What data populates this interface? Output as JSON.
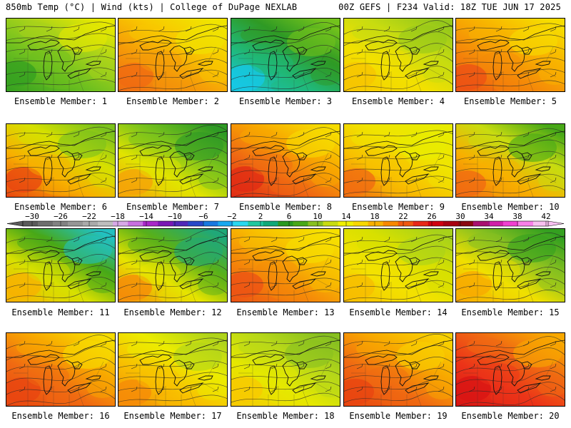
{
  "header": {
    "left": "850mb Temp (°C) | Wind (kts) | College of DuPage NEXLAB",
    "right": "00Z GEFS | F234 Valid: 18Z TUE JUN 17 2025"
  },
  "colorbar": {
    "labels": [
      "−30",
      "−26",
      "−22",
      "−18",
      "−14",
      "−10",
      "−6",
      "−2",
      "2",
      "6",
      "10",
      "14",
      "18",
      "22",
      "26",
      "30",
      "34",
      "38",
      "42"
    ],
    "values": [
      -30,
      -26,
      -22,
      -18,
      -14,
      -10,
      -6,
      -2,
      2,
      6,
      10,
      14,
      18,
      22,
      26,
      30,
      34,
      38,
      42
    ],
    "colors": [
      "#5a5a5a",
      "#6e6e6e",
      "#828282",
      "#969696",
      "#aaaaaa",
      "#bebebe",
      "#d8a8e8",
      "#c870e0",
      "#a828c8",
      "#7a18b4",
      "#5028b8",
      "#2848c8",
      "#1878e0",
      "#18a8f0",
      "#28d8f0",
      "#20c8a0",
      "#10a878",
      "#289820",
      "#48a818",
      "#88c020",
      "#c8dc10",
      "#f0f000",
      "#f8d800",
      "#f8b000",
      "#f88800",
      "#f05810",
      "#e82818",
      "#d00010",
      "#a80010",
      "#8a0810",
      "#a81070",
      "#d020a8",
      "#f040d0",
      "#f880e8",
      "#f8c0f0"
    ]
  },
  "members": [
    {
      "label": "Ensemble Member: 1",
      "palette": [
        "#34a020",
        "#6cbf1f",
        "#a8d21a",
        "#e6e800"
      ]
    },
    {
      "label": "Ensemble Member: 2",
      "palette": [
        "#f06a12",
        "#f59a08",
        "#f8c800",
        "#f0e400"
      ]
    },
    {
      "label": "Ensemble Member: 3",
      "palette": [
        "#16c8e8",
        "#20b878",
        "#2f9a24",
        "#72c21c"
      ]
    },
    {
      "label": "Ensemble Member: 4",
      "palette": [
        "#f7c400",
        "#f3e000",
        "#c8dc10",
        "#96c81a"
      ]
    },
    {
      "label": "Ensemble Member: 5",
      "palette": [
        "#ec5214",
        "#f58a08",
        "#f8b400",
        "#f6dc00"
      ]
    },
    {
      "label": "Ensemble Member: 6",
      "palette": [
        "#e84410",
        "#f8b000",
        "#d6e000",
        "#7cc21c"
      ]
    },
    {
      "label": "Ensemble Member: 7",
      "palette": [
        "#f5a208",
        "#e2e400",
        "#78c21c",
        "#2f9a24"
      ]
    },
    {
      "label": "Ensemble Member: 8",
      "palette": [
        "#e02a14",
        "#f06a12",
        "#f8a800",
        "#f6dc00"
      ]
    },
    {
      "label": "Ensemble Member: 9",
      "palette": [
        "#f06a12",
        "#f8c000",
        "#f0e400",
        "#e8ec00"
      ]
    },
    {
      "label": "Ensemble Member: 10",
      "palette": [
        "#f06a12",
        "#f8b000",
        "#c8dc10",
        "#48a818"
      ]
    },
    {
      "label": "Ensemble Member: 11",
      "palette": [
        "#f8b000",
        "#d8e000",
        "#48a818",
        "#22c0c0"
      ]
    },
    {
      "label": "Ensemble Member: 12",
      "palette": [
        "#f58a08",
        "#e6e400",
        "#58b01a",
        "#20a878"
      ]
    },
    {
      "label": "Ensemble Member: 13",
      "palette": [
        "#ec5214",
        "#f58a08",
        "#f8c000",
        "#f6e000"
      ]
    },
    {
      "label": "Ensemble Member: 14",
      "palette": [
        "#f7bc00",
        "#f3e200",
        "#d8e000",
        "#a8d21a"
      ]
    },
    {
      "label": "Ensemble Member: 15",
      "palette": [
        "#f8a800",
        "#f0e000",
        "#88c020",
        "#34a020"
      ]
    },
    {
      "label": "Ensemble Member: 16",
      "palette": [
        "#e84410",
        "#f06a12",
        "#f8a800",
        "#f6dc00"
      ]
    },
    {
      "label": "Ensemble Member: 17",
      "palette": [
        "#f58a08",
        "#f8c000",
        "#ecec00",
        "#b0d41a"
      ]
    },
    {
      "label": "Ensemble Member: 18",
      "palette": [
        "#f8c800",
        "#e6e800",
        "#b8d818",
        "#88c020"
      ]
    },
    {
      "label": "Ensemble Member: 19",
      "palette": [
        "#e84410",
        "#f06a12",
        "#f8a800",
        "#f8d000"
      ]
    },
    {
      "label": "Ensemble Member: 20",
      "palette": [
        "#d81414",
        "#ec3418",
        "#f06a12",
        "#f8a800"
      ]
    }
  ]
}
